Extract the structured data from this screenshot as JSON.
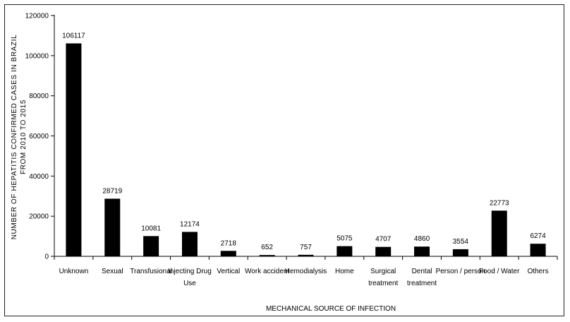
{
  "chart_data": {
    "type": "bar",
    "title": "",
    "xlabel": "MECHANICAL SOURCE OF INFECTION",
    "ylabel_lines": [
      "NUMBER OF HEPATITIS CONFIRMED CASES IN BRAZIL",
      "FROM 2010 TO 2015"
    ],
    "ylim": [
      0,
      120000
    ],
    "yticks": [
      0,
      20000,
      40000,
      60000,
      80000,
      100000,
      120000
    ],
    "grid": false,
    "legend": "none",
    "bar_color": "#000000",
    "categories": [
      [
        "Unknown"
      ],
      [
        "Sexual"
      ],
      [
        "Transfusional"
      ],
      [
        "Injecting Drug",
        "Use"
      ],
      [
        "Vertical"
      ],
      [
        "Work accident"
      ],
      [
        "Hemodialysis"
      ],
      [
        "Home"
      ],
      [
        "Surgical",
        "treatment"
      ],
      [
        "Dental",
        "treatment"
      ],
      [
        "Person / person"
      ],
      [
        "Food / Water"
      ],
      [
        "Others"
      ]
    ],
    "values": [
      106117,
      28719,
      10081,
      12174,
      2718,
      652,
      757,
      5075,
      4707,
      4860,
      3554,
      22773,
      6274
    ]
  }
}
